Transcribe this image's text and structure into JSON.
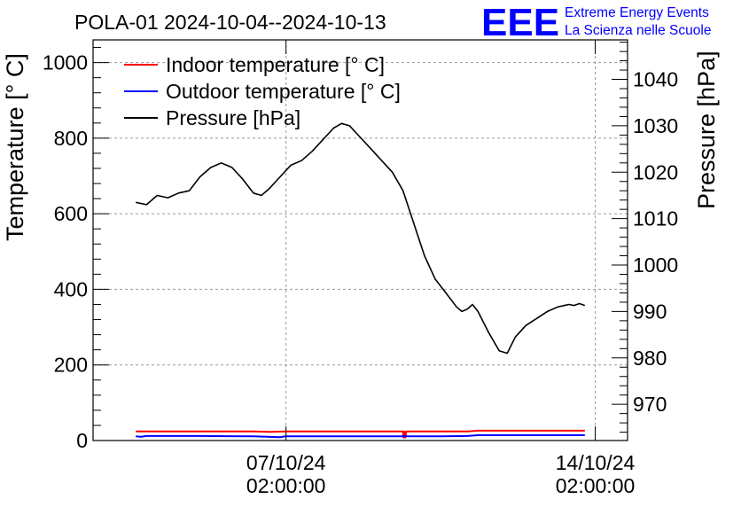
{
  "chart_data": {
    "type": "line",
    "title": "POLA-01 2024-10-04--2024-10-13",
    "ylabel": "Temperature [° C]",
    "y2label": "Pressure [hPa]",
    "ylim": [
      0,
      1060
    ],
    "y2lim": [
      962.2,
      1048.5
    ],
    "yticks": [
      0,
      200,
      400,
      600,
      800,
      1000
    ],
    "y2ticks": [
      970,
      980,
      990,
      1000,
      1010,
      1020,
      1030,
      1040
    ],
    "xticks": [
      {
        "pos": 0.361,
        "line1": "07/10/24",
        "line2": "02:00:00"
      },
      {
        "pos": 0.9395,
        "line1": "14/10/24",
        "line2": "02:00:00"
      }
    ],
    "grid": true,
    "legend_position": "top-left",
    "colors": {
      "indoor": "#ff0000",
      "outdoor": "#0000ff",
      "pressure": "#000000"
    },
    "series": [
      {
        "name": "Indoor temperature [° C]",
        "axis": "left",
        "color": "#ff0000",
        "points": [
          [
            0.08,
            24
          ],
          [
            0.3,
            24
          ],
          [
            0.33,
            23
          ],
          [
            0.36,
            24
          ],
          [
            0.58,
            24
          ],
          [
            0.581,
            8
          ],
          [
            0.583,
            24
          ],
          [
            0.584,
            8
          ],
          [
            0.586,
            24
          ],
          [
            0.7,
            24
          ],
          [
            0.72,
            26
          ],
          [
            0.92,
            26
          ]
        ]
      },
      {
        "name": "Outdoor temperature [° C]",
        "axis": "left",
        "color": "#0000ff",
        "points": [
          [
            0.08,
            11
          ],
          [
            0.09,
            10
          ],
          [
            0.1,
            12
          ],
          [
            0.2,
            12
          ],
          [
            0.3,
            11
          ],
          [
            0.35,
            9
          ],
          [
            0.36,
            11
          ],
          [
            0.55,
            11
          ],
          [
            0.65,
            11
          ],
          [
            0.7,
            12
          ],
          [
            0.72,
            14
          ],
          [
            0.92,
            14
          ]
        ]
      },
      {
        "name": "Pressure [hPa]",
        "axis": "right",
        "color": "#000000",
        "points": [
          [
            0.08,
            1013.5
          ],
          [
            0.1,
            1013
          ],
          [
            0.12,
            1015
          ],
          [
            0.14,
            1014.5
          ],
          [
            0.16,
            1015.5
          ],
          [
            0.18,
            1016
          ],
          [
            0.2,
            1019
          ],
          [
            0.22,
            1021
          ],
          [
            0.24,
            1022
          ],
          [
            0.26,
            1021
          ],
          [
            0.28,
            1018.5
          ],
          [
            0.3,
            1015.5
          ],
          [
            0.315,
            1015
          ],
          [
            0.33,
            1016.5
          ],
          [
            0.35,
            1019
          ],
          [
            0.37,
            1021.5
          ],
          [
            0.39,
            1022.5
          ],
          [
            0.41,
            1024.5
          ],
          [
            0.43,
            1027
          ],
          [
            0.45,
            1029.5
          ],
          [
            0.465,
            1030.5
          ],
          [
            0.48,
            1030
          ],
          [
            0.5,
            1027.5
          ],
          [
            0.52,
            1025
          ],
          [
            0.54,
            1022.5
          ],
          [
            0.56,
            1020
          ],
          [
            0.58,
            1016
          ],
          [
            0.6,
            1009
          ],
          [
            0.62,
            1002
          ],
          [
            0.64,
            997
          ],
          [
            0.66,
            994
          ],
          [
            0.68,
            991
          ],
          [
            0.69,
            990
          ],
          [
            0.7,
            990.5
          ],
          [
            0.71,
            991.5
          ],
          [
            0.72,
            990
          ],
          [
            0.74,
            985.5
          ],
          [
            0.76,
            981.5
          ],
          [
            0.775,
            981
          ],
          [
            0.79,
            984.5
          ],
          [
            0.81,
            987
          ],
          [
            0.83,
            988.5
          ],
          [
            0.85,
            990
          ],
          [
            0.87,
            991
          ],
          [
            0.89,
            991.5
          ],
          [
            0.9,
            991.3
          ],
          [
            0.91,
            991.7
          ],
          [
            0.92,
            991.3
          ]
        ]
      }
    ]
  },
  "branding": {
    "logo": "EEE",
    "line1": "Extreme Energy Events",
    "line2": "La Scienza nelle Scuole"
  }
}
